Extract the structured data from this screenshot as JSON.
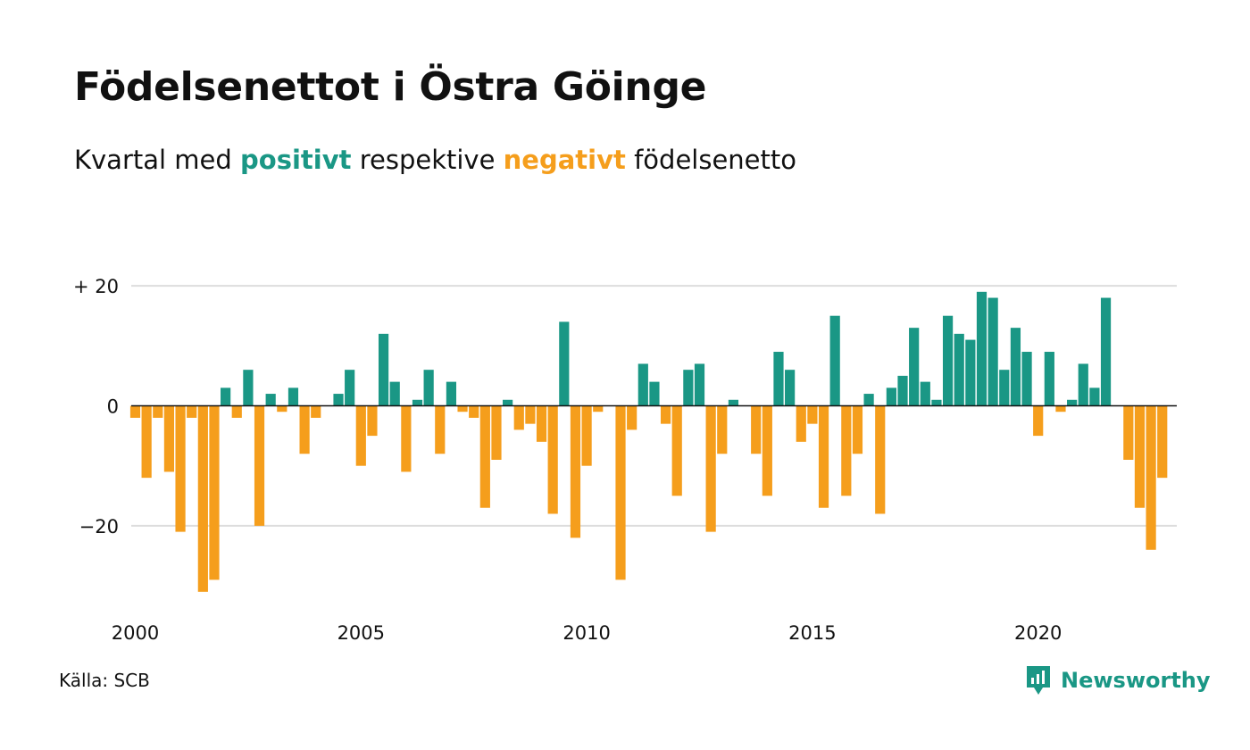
{
  "title": "Födelsenettot i Östra Göinge",
  "subtitle": {
    "prefix": "Kvartal med ",
    "positive_word": "positivt",
    "middle": " respektive ",
    "negative_word": "negativt",
    "suffix": " födelsenetto"
  },
  "source": "Källa: SCB",
  "brand": {
    "name": "Newsworthy",
    "icon": "newsworthy-logo-icon"
  },
  "colors": {
    "positive": "#1a9785",
    "negative": "#f59e1c",
    "grid": "#dddddd",
    "axis": "#111111"
  },
  "chart_data": {
    "type": "bar",
    "x_unit": "quarter",
    "start_quarter": "2000 Q1",
    "x_ticks": [
      "2000",
      "2005",
      "2010",
      "2015",
      "2020"
    ],
    "y_ticks": [
      {
        "value": 20,
        "label": "+ 20"
      },
      {
        "value": 0,
        "label": "0"
      },
      {
        "value": -20,
        "label": "−20"
      }
    ],
    "ylim": [
      -33,
      23
    ],
    "grid": true,
    "values": [
      -2,
      -12,
      -2,
      -11,
      -21,
      -2,
      -31,
      -29,
      3,
      -2,
      6,
      -20,
      2,
      -1,
      3,
      -8,
      -2,
      0,
      2,
      6,
      -10,
      -5,
      12,
      4,
      -11,
      1,
      6,
      -8,
      4,
      -1,
      -2,
      -17,
      -9,
      1,
      -4,
      -3,
      -6,
      -18,
      14,
      -22,
      -10,
      -1,
      0,
      -29,
      -4,
      7,
      4,
      -3,
      -15,
      6,
      7,
      -21,
      -8,
      1,
      0,
      -8,
      -15,
      9,
      6,
      -6,
      -3,
      -17,
      15,
      -15,
      -8,
      2,
      -18,
      3,
      5,
      13,
      4,
      1,
      15,
      12,
      11,
      19,
      18,
      6,
      13,
      9,
      -5,
      9,
      -1,
      1,
      7,
      3,
      18,
      0,
      -9,
      -17,
      -24,
      -12
    ]
  }
}
